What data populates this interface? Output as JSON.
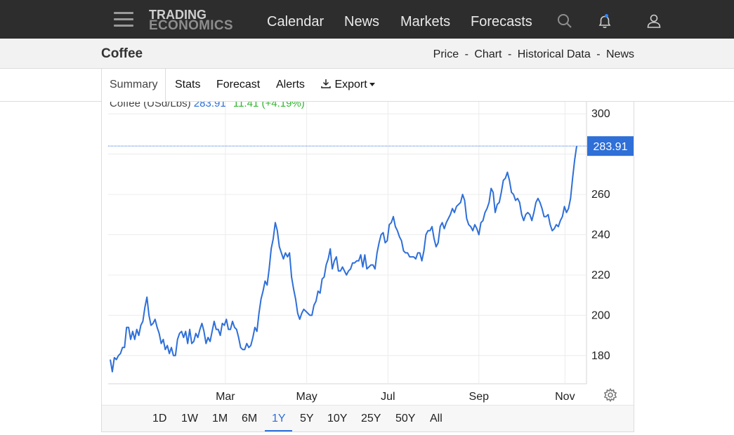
{
  "nav": {
    "logo_line1": "TRADING",
    "logo_line2": "ECONOMICS",
    "links": [
      "Calendar",
      "News",
      "Markets",
      "Forecasts"
    ],
    "icons": [
      "menu-icon",
      "search-icon",
      "bell-icon",
      "user-icon"
    ]
  },
  "page": {
    "title": "Coffee",
    "subnav": [
      "Price",
      "Chart",
      "Historical Data",
      "News"
    ],
    "subnav_separator": "-"
  },
  "tabs": {
    "summary": "Summary",
    "stats": "Stats",
    "forecast": "Forecast",
    "alerts": "Alerts",
    "export": "Export"
  },
  "legend": {
    "name": "Coffee (USd/Lbs)",
    "price": "283.91",
    "change": "11.41",
    "change_pct": "(+4.19%)"
  },
  "ranges": [
    "1D",
    "1W",
    "1M",
    "6M",
    "1Y",
    "5Y",
    "10Y",
    "25Y",
    "50Y",
    "All"
  ],
  "selected_range": "1Y",
  "colors": {
    "line": "#2e6fd8",
    "up": "#2fb52f",
    "price_tag": "#2e6fd8",
    "nav_bg": "#2d2d2d",
    "notification_dot": "#2e86ff"
  },
  "chart_data": {
    "type": "line",
    "series": [
      {
        "name": "Coffee (USd/Lbs)"
      }
    ],
    "x_ticks": [
      "Mar",
      "May",
      "Jul",
      "Sep",
      "Nov"
    ],
    "y_ticks": [
      180,
      200,
      220,
      240,
      260,
      300
    ],
    "ylim": [
      166,
      306
    ],
    "last_value_label": "283.91",
    "values": [
      178,
      172,
      179,
      178,
      180,
      181,
      184,
      184,
      194,
      194,
      188,
      192,
      188,
      193,
      190,
      195,
      197,
      204,
      209,
      200,
      195,
      196,
      198,
      194,
      191,
      186,
      188,
      183,
      185,
      181,
      184,
      180,
      180,
      188,
      191,
      192,
      189,
      192,
      186,
      193,
      186,
      187,
      191,
      189,
      193,
      196,
      192,
      186,
      189,
      187,
      192,
      197,
      193,
      193,
      190,
      196,
      195,
      198,
      193,
      193,
      197,
      194,
      193,
      189,
      184,
      183,
      183,
      186,
      184,
      185,
      189,
      194,
      192,
      201,
      208,
      212,
      217,
      215,
      223,
      233,
      238,
      246,
      242,
      234,
      231,
      228,
      231,
      229,
      231,
      219,
      213,
      208,
      201,
      198,
      201,
      203,
      202,
      201,
      200,
      200,
      205,
      207,
      212,
      211,
      218,
      219,
      225,
      228,
      233,
      223,
      227,
      229,
      222,
      222,
      224,
      222,
      220,
      222,
      223,
      226,
      226,
      227,
      227,
      230,
      224,
      230,
      223,
      224,
      225,
      225,
      223,
      231,
      236,
      240,
      241,
      236,
      237,
      245,
      246,
      249,
      244,
      242,
      239,
      237,
      232,
      231,
      231,
      229,
      229,
      229,
      228,
      231,
      231,
      227,
      232,
      240,
      242,
      242,
      244,
      238,
      234,
      236,
      244,
      246,
      243,
      246,
      248,
      250,
      253,
      251,
      254,
      255,
      256,
      260,
      257,
      248,
      245,
      244,
      242,
      245,
      243,
      240,
      246,
      247,
      251,
      253,
      256,
      263,
      261,
      251,
      255,
      256,
      261,
      267,
      268,
      271,
      267,
      261,
      260,
      257,
      258,
      256,
      250,
      247,
      250,
      251,
      250,
      247,
      251,
      256,
      258,
      256,
      253,
      249,
      249,
      250,
      245,
      242,
      243,
      245,
      244,
      247,
      249,
      254,
      251,
      253,
      258,
      268,
      277,
      284
    ]
  }
}
